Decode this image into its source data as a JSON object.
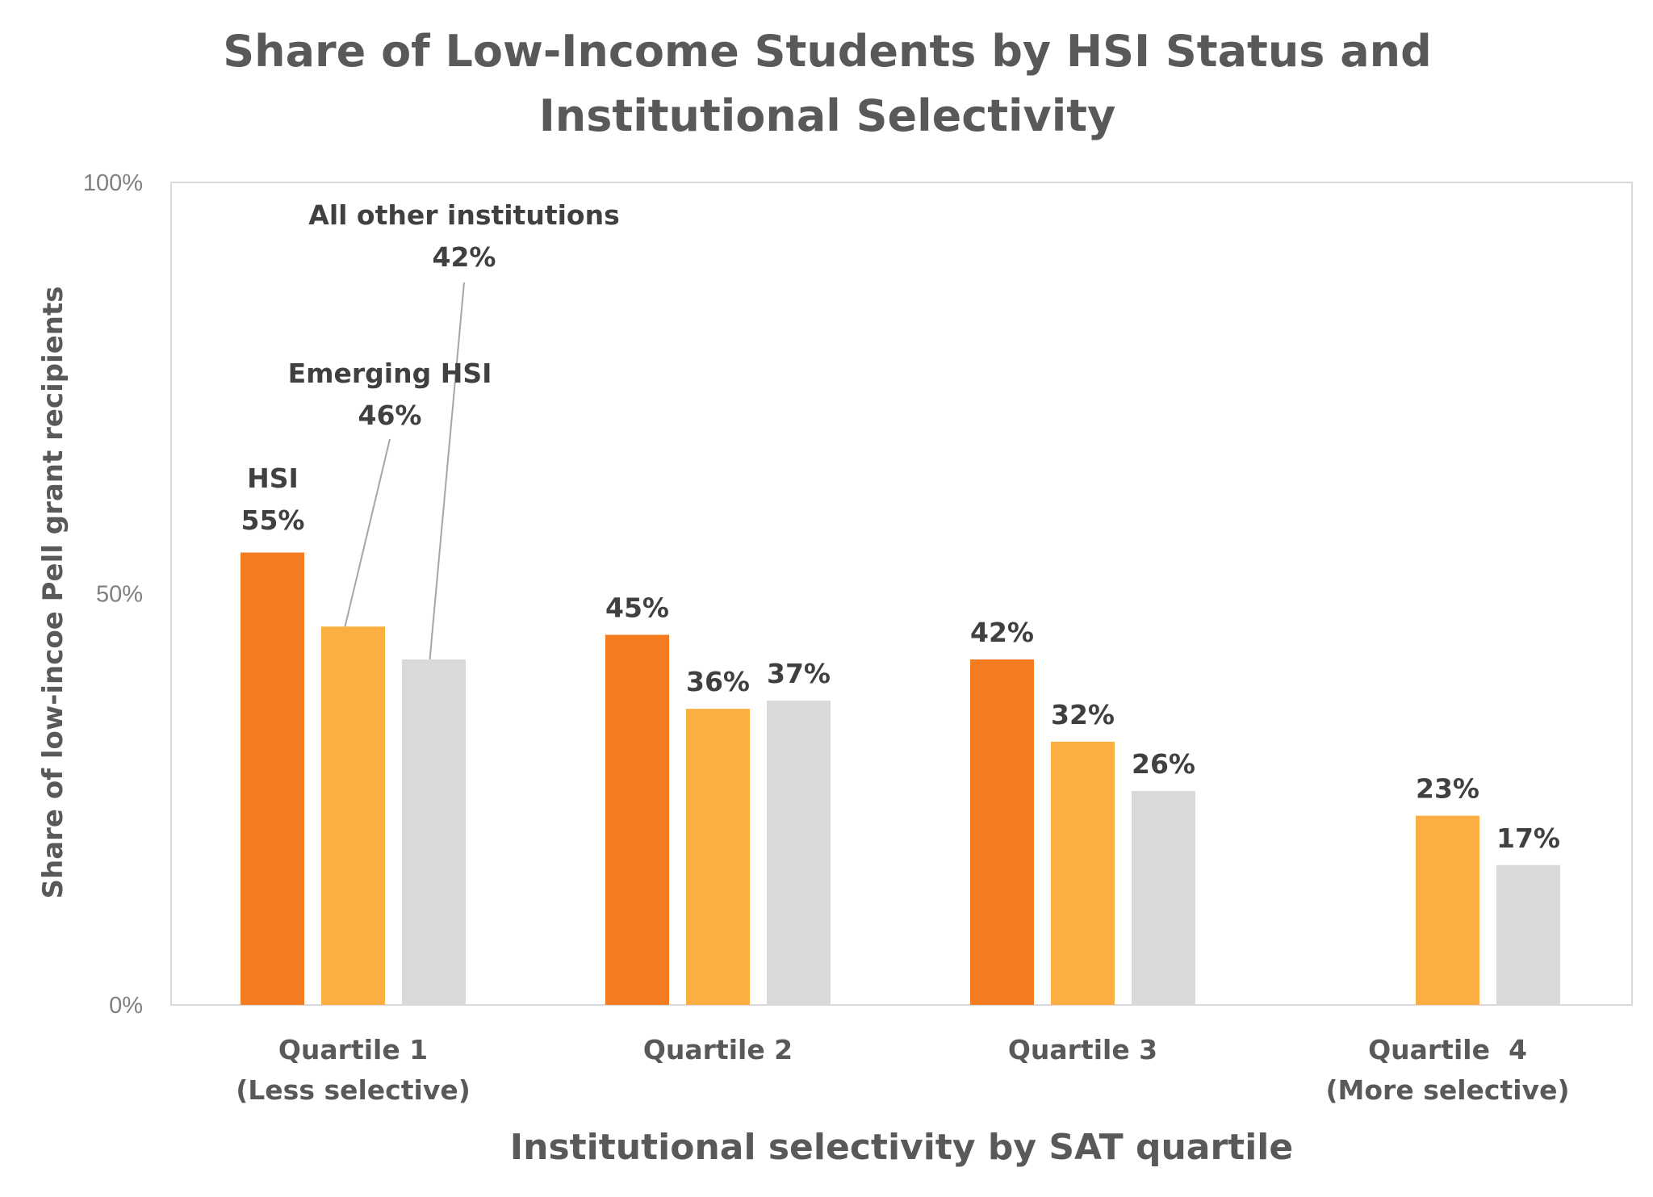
{
  "chart_data": {
    "type": "bar",
    "title": [
      "Share of Low-Income Students by HSI Status and",
      "Institutional Selectivity"
    ],
    "xlabel": "Institutional selectivity by SAT quartile",
    "ylabel": "Share of low-incoe Pell grant recipients",
    "ylim": [
      0,
      100
    ],
    "yticks": [
      {
        "value": 0,
        "label": "0%"
      },
      {
        "value": 50,
        "label": "50%"
      },
      {
        "value": 100,
        "label": "100%"
      }
    ],
    "categories": [
      [
        "Quartile 1",
        "(Less selective)"
      ],
      [
        "Quartile 2"
      ],
      [
        "Quartile 3"
      ],
      [
        "Quartile  4",
        "(More selective)"
      ]
    ],
    "series": [
      {
        "name": "HSI",
        "color": "#f37b20",
        "values": [
          55,
          45,
          42,
          null
        ],
        "labels": [
          "55%",
          "45%",
          "42%",
          ""
        ]
      },
      {
        "name": "Emerging HSI",
        "color": "#fbae42",
        "values": [
          46,
          36,
          32,
          23
        ],
        "labels": [
          "46%",
          "36%",
          "32%",
          "23%"
        ]
      },
      {
        "name": "All other institutions",
        "color": "#d9d9d9",
        "values": [
          42,
          37,
          26,
          17
        ],
        "labels": [
          "42%",
          "37%",
          "26%",
          "17%"
        ]
      }
    ],
    "grid": false,
    "legend": "none (series names annotated on Quartile 1 bars)"
  }
}
